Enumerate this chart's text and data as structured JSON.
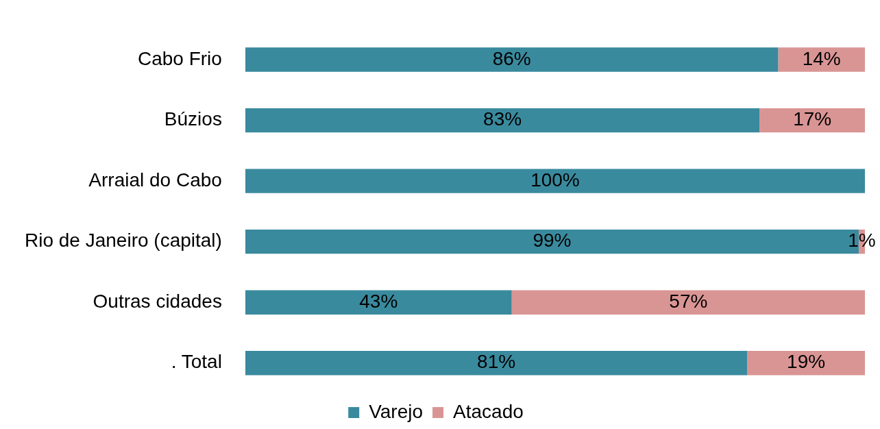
{
  "chart_data": {
    "type": "bar",
    "orientation": "horizontal",
    "stacked": true,
    "categories": [
      "Cabo Frio",
      "Búzios",
      "Arraial do Cabo",
      "Rio de Janeiro (capital)",
      "Outras cidades",
      ". Total"
    ],
    "xlim": [
      0,
      100
    ],
    "legend": "bottom",
    "series": [
      {
        "name": "Varejo",
        "color": "#3a8a9e",
        "values": [
          86,
          83,
          100,
          99,
          43,
          81
        ],
        "value_labels": [
          "86%",
          "83%",
          "100%",
          "99%",
          "43%",
          "81%"
        ]
      },
      {
        "name": "Atacado",
        "color": "#d99594",
        "values": [
          14,
          17,
          0,
          1,
          57,
          19
        ],
        "value_labels": [
          "14%",
          "17%",
          null,
          "1%",
          "57%",
          "19%"
        ]
      }
    ]
  }
}
